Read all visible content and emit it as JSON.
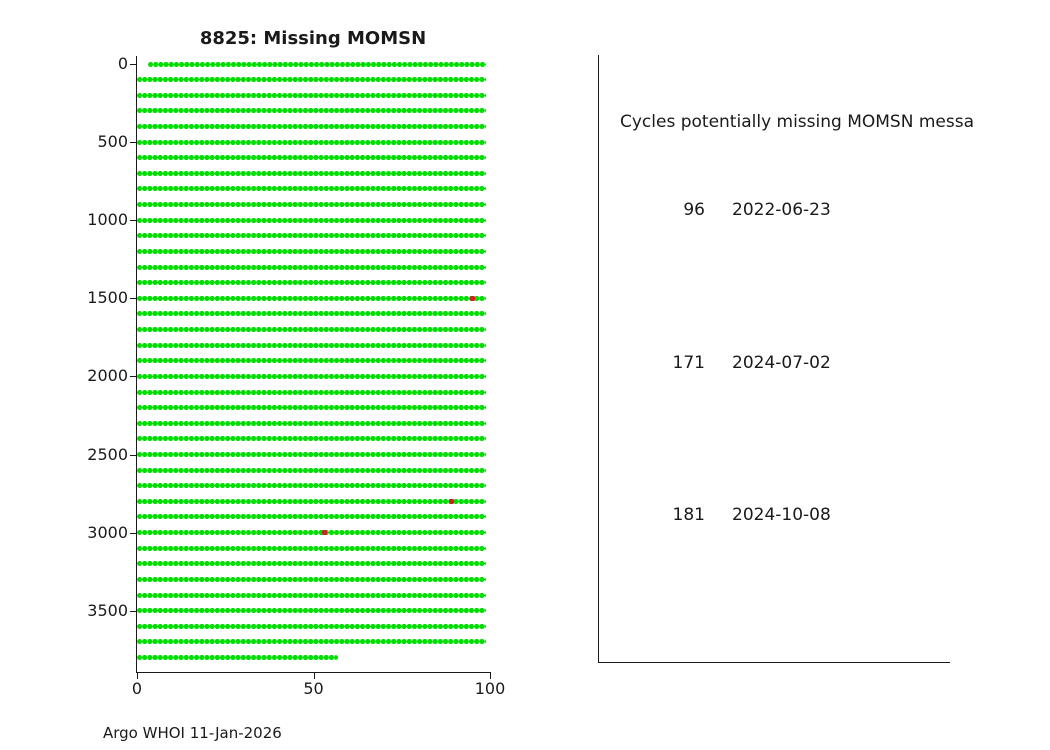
{
  "figure": {
    "footer": "Argo WHOI 11-Jan-2026"
  },
  "chart_data": {
    "type": "scatter",
    "title": "8825: Missing MOMSN",
    "xlabel": "",
    "ylabel": "",
    "xlim": [
      0,
      100
    ],
    "ylim": [
      0,
      3900
    ],
    "y_axis_inverted": true,
    "grid": false,
    "legend": "none",
    "xticks": [
      0,
      50,
      100
    ],
    "yticks": [
      0,
      500,
      1000,
      1500,
      2000,
      2500,
      3000,
      3500
    ],
    "marker_color": "#00dd00",
    "missing_marker_color": "#cc2222",
    "rows": {
      "y_first": 0,
      "y_step": 100,
      "full_row_count": 38,
      "x_start": 0,
      "x_end": 99,
      "first_row_x_start": 3,
      "partial_last_row": {
        "y": 3800,
        "x_start": 0,
        "x_end": 57
      }
    },
    "missing_points": [
      {
        "x": 95,
        "y": 1500
      },
      {
        "x": 89,
        "y": 2800
      },
      {
        "x": 53,
        "y": 3000
      }
    ]
  },
  "side_panel": {
    "header": "Cycles potentially missing MOMSN messa",
    "entries": [
      {
        "cycle": "96",
        "date": "2022-06-23"
      },
      {
        "cycle": "171",
        "date": "2024-07-02"
      },
      {
        "cycle": "181",
        "date": "2024-10-08"
      }
    ]
  }
}
